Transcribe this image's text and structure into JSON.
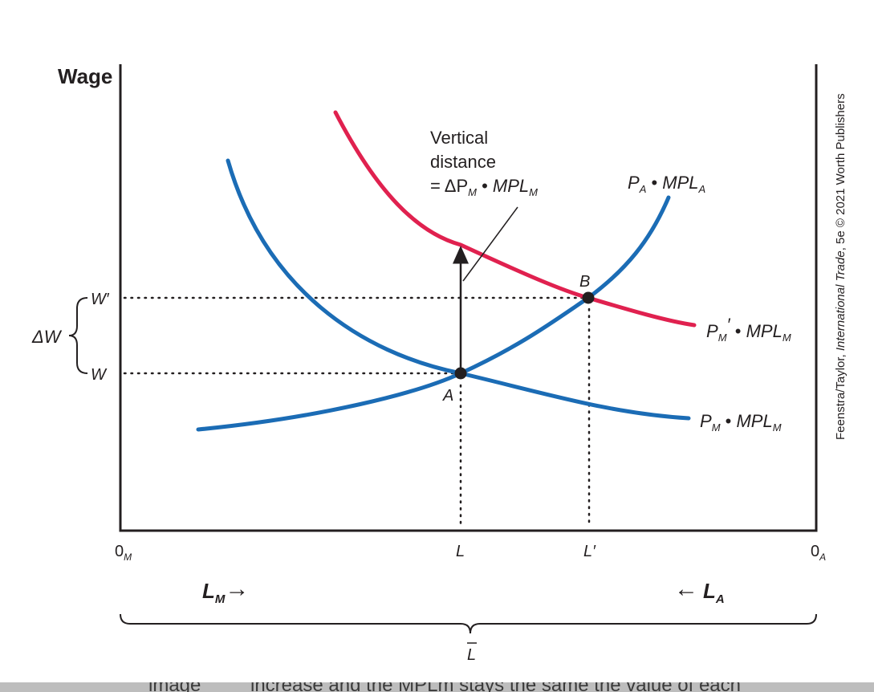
{
  "axis": {
    "y_title": "Wage",
    "origin_left": "0",
    "origin_left_sub": "M",
    "origin_right": "0",
    "origin_right_sub": "A",
    "tick_L": "L",
    "tick_Lprime": "L′",
    "total_labor": "L",
    "lm_label": "L",
    "lm_sub": "M",
    "la_label": "L",
    "la_sub": "A",
    "arrow_right": "→",
    "arrow_left": "←"
  },
  "wages": {
    "w_prime": "W′",
    "w": "W",
    "delta_w": "ΔW"
  },
  "points": {
    "a": "A",
    "b": "B"
  },
  "curves": {
    "manufacturing": {
      "p": "P",
      "p_sub": "M",
      "dot": " • ",
      "mpl": "MPL",
      "mpl_sub": "M"
    },
    "manufacturing_new": {
      "p": "P",
      "p_sub": "M",
      "prime": "′",
      "dot": " • ",
      "mpl": "MPL",
      "mpl_sub": "M"
    },
    "agriculture": {
      "p": "P",
      "p_sub": "A",
      "dot": " • ",
      "mpl": "MPL",
      "mpl_sub": "A"
    }
  },
  "annotation": {
    "line1": "Vertical",
    "line2": "distance",
    "line3_prefix": "= ΔP",
    "line3_sub1": "M",
    "line3_dot": " • ",
    "line3_mpl": "MPL",
    "line3_sub2": "M"
  },
  "credit": {
    "authors": "Feenstra/Taylor, ",
    "title": "International Trade",
    "rest": ", 5e © 2021 Worth Publishers"
  },
  "footer_fragment": {
    "left": "image",
    "right": "increase and the MPLm stays the same the value of each"
  },
  "colors": {
    "blue": "#1b6cb5",
    "red": "#e0214f",
    "ink": "#231f20"
  }
}
